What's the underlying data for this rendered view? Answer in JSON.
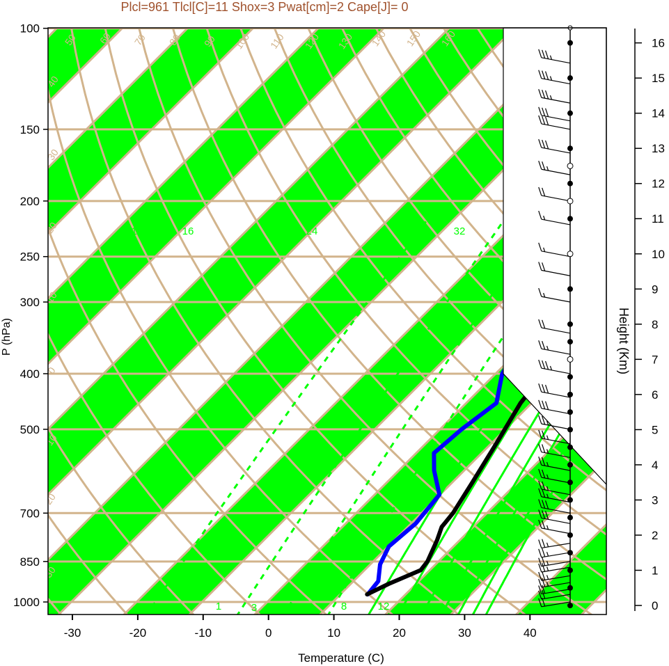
{
  "chart_data": {
    "type": "line",
    "title": "Plcl=961 Tlcl[C]=11 Shox=3 Pwat[cm]=2 Cape[J]= 0",
    "xlabel": "Temperature (C)",
    "ylabel": "P (hPa)",
    "y2label": "Height (Km)",
    "x_ticks": [
      -30,
      -20,
      -10,
      0,
      10,
      20,
      30,
      40
    ],
    "p_ticks": [
      100,
      150,
      200,
      250,
      300,
      400,
      500,
      700,
      850,
      1000
    ],
    "height_ticks": [
      0,
      1,
      2,
      3,
      4,
      5,
      6,
      7,
      8,
      9,
      10,
      11,
      12,
      13,
      14,
      15,
      16
    ],
    "xlim": [
      -34,
      44
    ],
    "plim": [
      1050,
      100
    ],
    "isotherm_labels": [
      "50",
      "60",
      "70",
      "80",
      "90",
      "100",
      "110",
      "120",
      "130",
      "140",
      "150",
      "160",
      "30",
      "20",
      "10",
      "0",
      "10",
      "20",
      "30",
      "40",
      "30",
      "20",
      "10",
      "0",
      "10",
      "20",
      "30"
    ],
    "mixing_ratio_labels": [
      "12",
      "16",
      "24",
      "32",
      "1",
      "3",
      "8",
      "12"
    ],
    "series": [
      {
        "name": "temperature",
        "color": "#000000",
        "points": [
          [
            14.1,
            970
          ],
          [
            15.8,
            930
          ],
          [
            18.6,
            880
          ],
          [
            18.3,
            850
          ],
          [
            16.5,
            780
          ],
          [
            15.2,
            740
          ],
          [
            14.8,
            700
          ],
          [
            13.1,
            620
          ],
          [
            10.8,
            530
          ],
          [
            8.3,
            450
          ],
          [
            7.3,
            400
          ],
          [
            4.8,
            350
          ],
          [
            1.9,
            300
          ],
          [
            -2.1,
            250
          ],
          [
            -3.6,
            220
          ],
          [
            -2.6,
            200
          ],
          [
            -1.8,
            175
          ],
          [
            -1.3,
            150
          ],
          [
            0.6,
            125
          ],
          [
            1.8,
            110
          ]
        ]
      },
      {
        "name": "dewpoint",
        "color": "#0000ff",
        "points": [
          [
            14.2,
            970
          ],
          [
            13.8,
            920
          ],
          [
            11.5,
            860
          ],
          [
            10.1,
            800
          ],
          [
            10.7,
            730
          ],
          [
            9.9,
            650
          ],
          [
            5.4,
            590
          ],
          [
            2.7,
            550
          ],
          [
            3.3,
            500
          ],
          [
            4.6,
            450
          ],
          [
            1.0,
            400
          ],
          [
            -0.6,
            360
          ],
          [
            -3.2,
            320
          ],
          [
            -2.8,
            290
          ],
          [
            -4.3,
            250
          ],
          [
            -3.6,
            200
          ],
          [
            -8.3,
            150
          ],
          [
            -9.9,
            140
          ],
          [
            -5.6,
            120
          ],
          [
            -4.0,
            112
          ]
        ]
      }
    ],
    "wind_profile": {
      "pressure_levels": [
        1000,
        970,
        950,
        925,
        900,
        870,
        850,
        820,
        790,
        760,
        730,
        700,
        670,
        650,
        620,
        590,
        560,
        530,
        500,
        470,
        440,
        400,
        370,
        340,
        300,
        270,
        250,
        220,
        200,
        180,
        165,
        150,
        145,
        135,
        125,
        115
      ],
      "direction_deg": [
        200,
        210,
        215,
        220,
        225,
        230,
        235,
        240,
        245,
        250,
        255,
        255,
        260,
        260,
        262,
        262,
        265,
        265,
        265,
        268,
        268,
        270,
        270,
        270,
        272,
        272,
        272,
        272,
        272,
        272,
        275,
        275,
        275,
        275,
        278,
        278
      ],
      "speed_kt": [
        20,
        20,
        20,
        25,
        25,
        25,
        25,
        25,
        25,
        25,
        30,
        30,
        25,
        25,
        25,
        25,
        25,
        25,
        25,
        30,
        30,
        35,
        25,
        20,
        15,
        20,
        15,
        15,
        20,
        25,
        30,
        30,
        30,
        35,
        35,
        35
      ]
    },
    "height_points_km": [
      0,
      0.5,
      1,
      1.5,
      2,
      2.5,
      3,
      3.5,
      4,
      4.5,
      5,
      5.5,
      6,
      6.5,
      7,
      7.5,
      8,
      9,
      10,
      11,
      12,
      13,
      14,
      15,
      16
    ],
    "colors": {
      "bands": "#00ff00",
      "grid": "#d2b48c",
      "mixing_ratio": "#00ff00",
      "title": "#a0522d"
    }
  }
}
